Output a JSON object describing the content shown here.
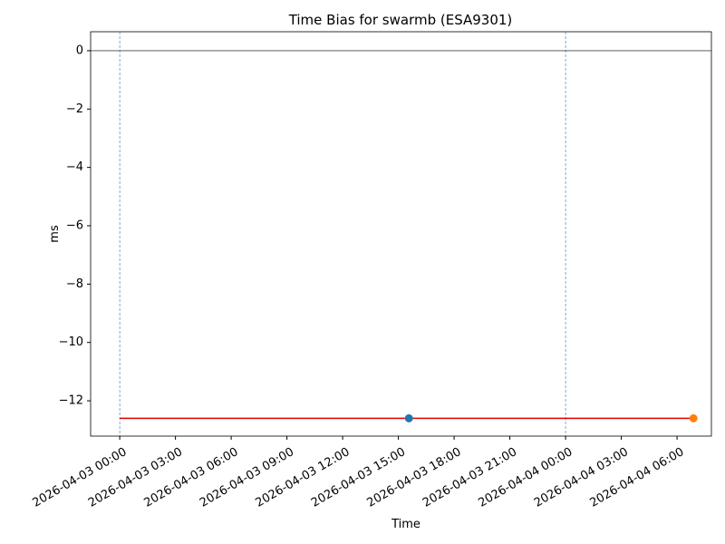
{
  "chart_data": {
    "type": "line",
    "title": "Time Bias for swarmb (ESA9301)",
    "x_label": "Time",
    "y_label": "ms",
    "xlim": [
      "2026-04-02 22:26",
      "2026-04-04 07:51"
    ],
    "xticks": [
      "2026-04-03 00:00",
      "2026-04-03 03:00",
      "2026-04-03 06:00",
      "2026-04-03 09:00",
      "2026-04-03 12:00",
      "2026-04-03 15:00",
      "2026-04-03 18:00",
      "2026-04-03 21:00",
      "2026-04-04 00:00",
      "2026-04-04 03:00",
      "2026-04-04 06:00"
    ],
    "ylim": [
      -13.21,
      0.65
    ],
    "yticks": [
      0,
      {
        "value": -2,
        "label": "−2"
      },
      {
        "value": -4,
        "label": "−4"
      },
      {
        "value": -6,
        "label": "−6"
      },
      {
        "value": -8,
        "label": "−8"
      },
      {
        "value": -10,
        "label": "−10"
      },
      {
        "value": -12,
        "label": "−12"
      }
    ],
    "hline": {
      "value": 0,
      "color": "#000000"
    },
    "vlines": {
      "x": [
        "2026-04-03 00:00",
        "2026-04-04 00:00"
      ],
      "color": "#1f77b4"
    },
    "series": [
      {
        "color": "#e00000",
        "marker": false,
        "x": [
          "2026-04-03 00:00",
          "2026-04-04 06:53"
        ],
        "values": [
          -12.6,
          -12.6
        ]
      },
      {
        "color": "#1f77b4",
        "marker": true,
        "x": [
          "2026-04-03 15:34"
        ],
        "values": [
          -12.6
        ]
      },
      {
        "color": "#ff7f0e",
        "marker": true,
        "x": [
          "2026-04-04 06:53"
        ],
        "values": [
          -12.6
        ]
      }
    ]
  }
}
